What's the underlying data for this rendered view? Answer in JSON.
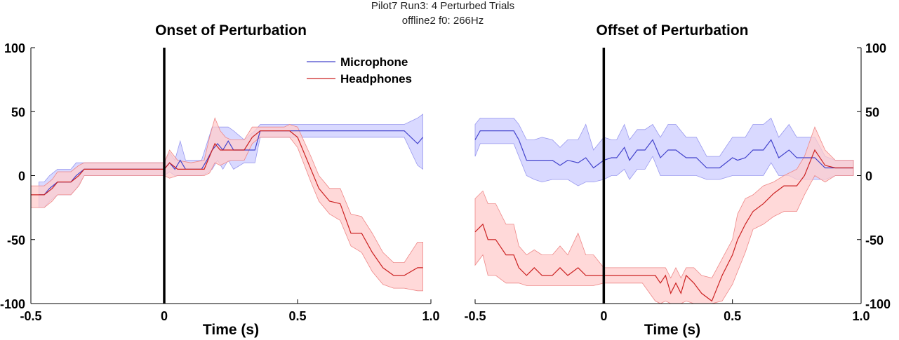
{
  "figure": {
    "suptitle_line1": "Pilot7 Run3: 4 Perturbed Trials",
    "suptitle_line2": "offline2   f0: 266Hz"
  },
  "colors": {
    "mic_line": "#4444cc",
    "mic_band": "#ccccff",
    "mic_band_edge": "#9999ee",
    "head_line": "#cc2222",
    "head_band": "#ffcccc",
    "head_band_edge": "#ee8888",
    "axis": "#000000"
  },
  "chart_data": [
    {
      "type": "line",
      "title": "Onset of Perturbation",
      "xlabel": "Time (s)",
      "ylabel": "",
      "xlim": [
        -0.5,
        1.0
      ],
      "ylim": [
        -100,
        100
      ],
      "xticks": [
        -0.5,
        0,
        0.5,
        1.0
      ],
      "xtick_labels": [
        "-0.5",
        "0",
        "0.5",
        "1.0"
      ],
      "yticks": [
        -100,
        -50,
        0,
        50,
        100
      ],
      "ytick_labels": [
        "-100",
        "-50",
        "0",
        "50",
        "100"
      ],
      "ytick_side": "left",
      "vline_x": 0,
      "grid": false,
      "legend": {
        "placement": "top-center",
        "entries": [
          "Microphone",
          "Headphones"
        ]
      },
      "series": [
        {
          "name": "Microphone",
          "x": [
            -0.47,
            -0.45,
            -0.43,
            -0.4,
            -0.38,
            -0.35,
            -0.33,
            -0.3,
            -0.28,
            -0.25,
            -0.2,
            -0.1,
            0,
            0.02,
            0.04,
            0.06,
            0.08,
            0.1,
            0.14,
            0.16,
            0.18,
            0.2,
            0.22,
            0.24,
            0.26,
            0.3,
            0.34,
            0.36,
            0.4,
            0.45,
            0.5,
            0.6,
            0.7,
            0.8,
            0.9,
            0.95,
            0.97
          ],
          "y": [
            -15,
            -15,
            -10,
            -5,
            -5,
            -5,
            0,
            5,
            5,
            5,
            5,
            5,
            5,
            10,
            5,
            12,
            5,
            5,
            5,
            12,
            20,
            25,
            20,
            27,
            20,
            20,
            20,
            35,
            35,
            35,
            35,
            35,
            35,
            35,
            35,
            25,
            30
          ],
          "upper": [
            -5,
            -5,
            0,
            5,
            5,
            5,
            10,
            10,
            10,
            10,
            10,
            10,
            10,
            18,
            12,
            27,
            12,
            12,
            12,
            25,
            38,
            38,
            38,
            38,
            35,
            28,
            35,
            40,
            40,
            40,
            40,
            40,
            40,
            40,
            40,
            45,
            48
          ],
          "lower": [
            -25,
            -25,
            -20,
            -15,
            -15,
            -15,
            -10,
            0,
            0,
            0,
            0,
            0,
            0,
            3,
            0,
            0,
            0,
            0,
            0,
            2,
            5,
            12,
            5,
            12,
            5,
            10,
            10,
            30,
            30,
            30,
            30,
            30,
            30,
            30,
            30,
            8,
            5
          ]
        },
        {
          "name": "Headphones",
          "x": [
            -0.5,
            -0.45,
            -0.42,
            -0.4,
            -0.35,
            -0.32,
            -0.3,
            -0.28,
            -0.25,
            -0.2,
            -0.1,
            0,
            0.02,
            0.05,
            0.1,
            0.15,
            0.17,
            0.19,
            0.21,
            0.23,
            0.25,
            0.3,
            0.33,
            0.36,
            0.4,
            0.45,
            0.47,
            0.5,
            0.55,
            0.58,
            0.62,
            0.66,
            0.7,
            0.74,
            0.78,
            0.82,
            0.86,
            0.9,
            0.95,
            0.97
          ],
          "y": [
            -15,
            -15,
            -10,
            -5,
            -5,
            0,
            5,
            5,
            5,
            5,
            5,
            5,
            10,
            5,
            5,
            5,
            15,
            25,
            20,
            20,
            20,
            20,
            30,
            35,
            35,
            35,
            35,
            30,
            5,
            -10,
            -20,
            -22,
            -45,
            -45,
            -60,
            -72,
            -78,
            -78,
            -72,
            -72
          ],
          "upper": [
            -8,
            -8,
            -3,
            3,
            3,
            8,
            10,
            10,
            10,
            10,
            10,
            10,
            20,
            12,
            10,
            12,
            30,
            45,
            35,
            30,
            28,
            28,
            38,
            38,
            38,
            38,
            40,
            38,
            15,
            0,
            -10,
            -10,
            -30,
            -32,
            -45,
            -60,
            -68,
            -68,
            -52,
            -52
          ],
          "lower": [
            -25,
            -25,
            -20,
            -15,
            -15,
            -8,
            0,
            0,
            0,
            0,
            0,
            0,
            -2,
            0,
            0,
            0,
            2,
            10,
            8,
            10,
            12,
            12,
            25,
            30,
            30,
            30,
            30,
            22,
            -5,
            -20,
            -30,
            -35,
            -55,
            -60,
            -75,
            -85,
            -88,
            -88,
            -90,
            -90
          ]
        }
      ]
    },
    {
      "type": "line",
      "title": "Offset of Perturbation",
      "xlabel": "Time (s)",
      "ylabel": "",
      "xlim": [
        -0.5,
        1.0
      ],
      "ylim": [
        -100,
        100
      ],
      "xticks": [
        -0.5,
        0,
        0.5,
        1.0
      ],
      "xtick_labels": [
        "-0.5",
        "0",
        "0.5",
        "1.0"
      ],
      "yticks": [
        -100,
        -50,
        0,
        50,
        100
      ],
      "ytick_labels": [
        "-100",
        "-50",
        "0",
        "50",
        "100"
      ],
      "ytick_side": "right",
      "vline_x": 0,
      "grid": false,
      "legend": null,
      "series": [
        {
          "name": "Microphone",
          "x": [
            -0.5,
            -0.48,
            -0.35,
            -0.33,
            -0.3,
            -0.27,
            -0.24,
            -0.2,
            -0.17,
            -0.14,
            -0.1,
            -0.07,
            -0.04,
            0,
            0.03,
            0.05,
            0.08,
            0.1,
            0.13,
            0.16,
            0.19,
            0.22,
            0.25,
            0.28,
            0.32,
            0.36,
            0.4,
            0.45,
            0.5,
            0.52,
            0.55,
            0.58,
            0.62,
            0.65,
            0.68,
            0.72,
            0.75,
            0.78,
            0.82,
            0.86,
            0.9,
            0.97
          ],
          "y": [
            28,
            35,
            35,
            28,
            12,
            12,
            12,
            12,
            8,
            12,
            10,
            14,
            6,
            12,
            14,
            14,
            22,
            12,
            20,
            20,
            28,
            14,
            20,
            20,
            14,
            14,
            6,
            6,
            14,
            12,
            14,
            20,
            20,
            28,
            14,
            20,
            14,
            14,
            14,
            6,
            6,
            6
          ],
          "upper": [
            40,
            45,
            45,
            40,
            28,
            28,
            30,
            28,
            22,
            28,
            28,
            40,
            20,
            30,
            28,
            28,
            40,
            28,
            36,
            36,
            40,
            30,
            40,
            40,
            30,
            30,
            15,
            15,
            30,
            30,
            30,
            40,
            40,
            45,
            30,
            40,
            30,
            30,
            30,
            15,
            12,
            12
          ],
          "lower": [
            15,
            25,
            25,
            15,
            0,
            -3,
            -5,
            -3,
            -3,
            -3,
            -8,
            -5,
            -5,
            -3,
            0,
            0,
            5,
            -3,
            5,
            5,
            15,
            0,
            0,
            0,
            0,
            0,
            -3,
            -3,
            0,
            0,
            0,
            0,
            0,
            10,
            0,
            0,
            -3,
            -3,
            -3,
            -3,
            0,
            0
          ]
        },
        {
          "name": "Headphones",
          "x": [
            -0.5,
            -0.47,
            -0.45,
            -0.42,
            -0.38,
            -0.35,
            -0.33,
            -0.3,
            -0.27,
            -0.24,
            -0.2,
            -0.17,
            -0.14,
            -0.1,
            -0.07,
            -0.04,
            0,
            0.05,
            0.1,
            0.15,
            0.2,
            0.22,
            0.24,
            0.26,
            0.28,
            0.3,
            0.32,
            0.35,
            0.38,
            0.42,
            0.46,
            0.5,
            0.52,
            0.55,
            0.58,
            0.62,
            0.66,
            0.7,
            0.75,
            0.78,
            0.82,
            0.86,
            0.9,
            0.97
          ],
          "y": [
            -44,
            -38,
            -50,
            -50,
            -62,
            -62,
            -72,
            -78,
            -72,
            -78,
            -78,
            -72,
            -78,
            -72,
            -78,
            -78,
            -78,
            -78,
            -78,
            -78,
            -78,
            -84,
            -78,
            -92,
            -84,
            -92,
            -78,
            -84,
            -92,
            -98,
            -78,
            -62,
            -50,
            -38,
            -28,
            -22,
            -14,
            -8,
            -8,
            0,
            20,
            8,
            6,
            6
          ],
          "upper": [
            -18,
            -12,
            -22,
            -22,
            -38,
            -38,
            -55,
            -62,
            -58,
            -62,
            -62,
            -55,
            -62,
            -45,
            -62,
            -62,
            -72,
            -72,
            -72,
            -72,
            -72,
            -72,
            -72,
            -80,
            -72,
            -80,
            -72,
            -72,
            -78,
            -80,
            -65,
            -50,
            -30,
            -18,
            -15,
            -8,
            -5,
            0,
            5,
            15,
            38,
            20,
            12,
            12
          ],
          "lower": [
            -70,
            -62,
            -78,
            -78,
            -84,
            -84,
            -84,
            -86,
            -86,
            -86,
            -86,
            -86,
            -86,
            -86,
            -86,
            -86,
            -84,
            -84,
            -84,
            -84,
            -98,
            -100,
            -98,
            -100,
            -100,
            -100,
            -98,
            -100,
            -100,
            -100,
            -98,
            -85,
            -75,
            -60,
            -42,
            -38,
            -32,
            -28,
            -28,
            -15,
            0,
            -5,
            0,
            0
          ]
        }
      ]
    }
  ]
}
